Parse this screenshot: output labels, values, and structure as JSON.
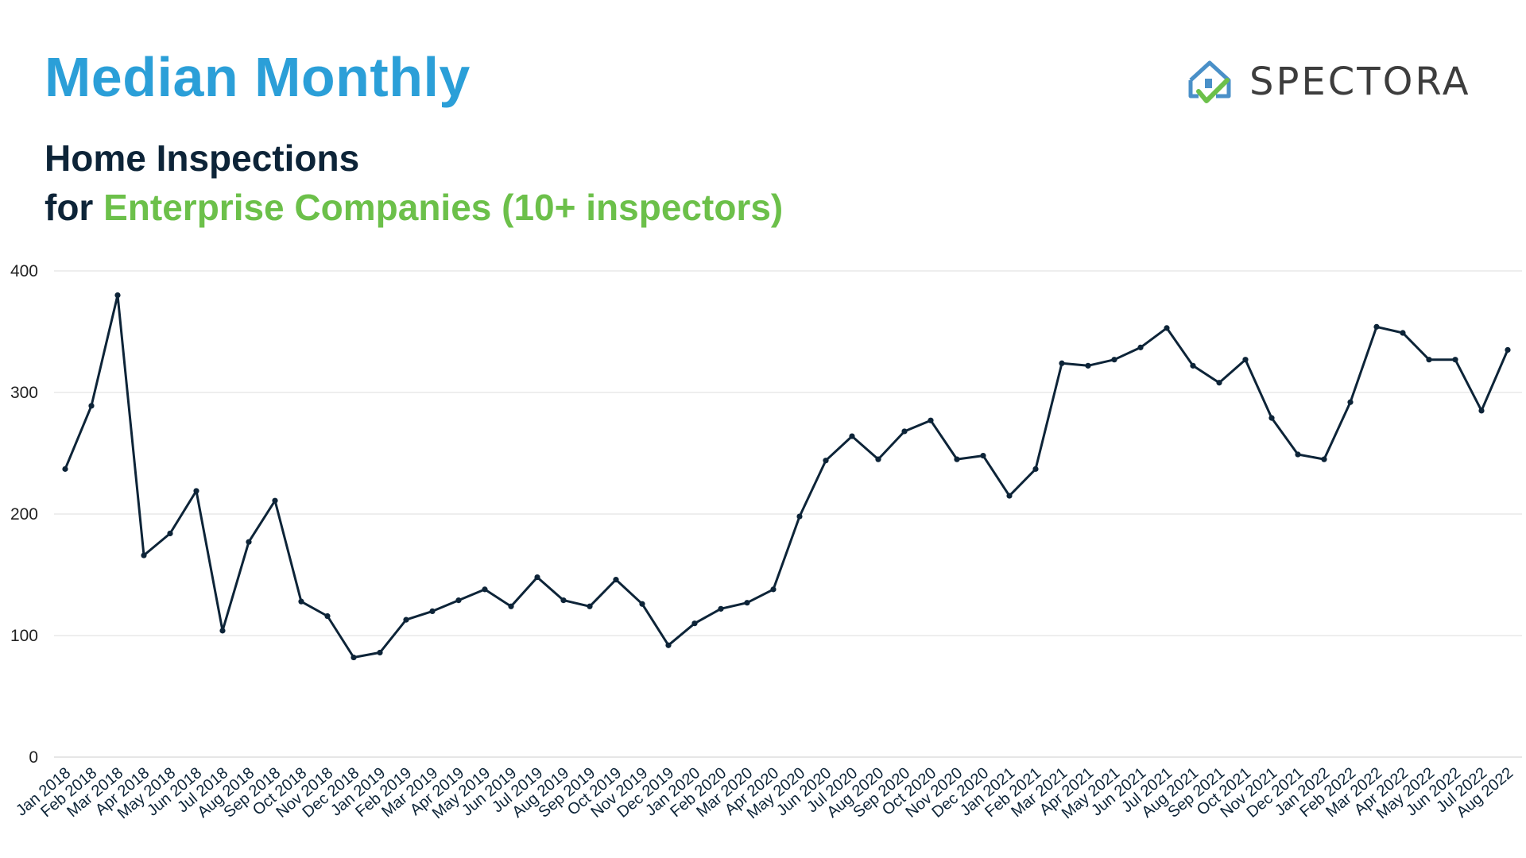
{
  "header": {
    "title": "Median Monthly",
    "subtitle_line1": "Home Inspections",
    "subtitle_for": "for",
    "subtitle_highlight": "Enterprise Companies (10+ inspectors)"
  },
  "brand": {
    "name": "SPECTORA",
    "icon": "house-check-icon",
    "colors": {
      "house": "#4a90c8",
      "check": "#6cc04a"
    }
  },
  "colors": {
    "title": "#2b9fd8",
    "subtitle": "#0d2438",
    "accent": "#6cc04a",
    "line": "#0d2438",
    "grid": "#dddddd"
  },
  "chart_data": {
    "type": "line",
    "title": "",
    "xlabel": "",
    "ylabel": "",
    "ylim": [
      0,
      400
    ],
    "yticks": [
      0,
      100,
      200,
      300,
      400
    ],
    "grid": true,
    "categories": [
      "Jan 2018",
      "Feb 2018",
      "Mar 2018",
      "Apr 2018",
      "May 2018",
      "Jun 2018",
      "Jul 2018",
      "Aug 2018",
      "Sep 2018",
      "Oct 2018",
      "Nov 2018",
      "Dec 2018",
      "Jan 2019",
      "Feb 2019",
      "Mar 2019",
      "Apr 2019",
      "May 2019",
      "Jun 2019",
      "Jul 2019",
      "Aug 2019",
      "Sep 2019",
      "Oct 2019",
      "Nov 2019",
      "Dec 2019",
      "Jan 2020",
      "Feb 2020",
      "Mar 2020",
      "Apr 2020",
      "May 2020",
      "Jun 2020",
      "Jul 2020",
      "Aug 2020",
      "Sep 2020",
      "Oct 2020",
      "Nov 2020",
      "Dec 2020",
      "Jan 2021",
      "Feb 2021",
      "Mar 2021",
      "Apr 2021",
      "May 2021",
      "Jun 2021",
      "Jul 2021",
      "Aug 2021",
      "Sep 2021",
      "Oct 2021",
      "Nov 2021",
      "Dec 2021",
      "Jan 2022",
      "Feb 2022",
      "Mar 2022",
      "Apr 2022",
      "May 2022",
      "Jun 2022",
      "Jul 2022",
      "Aug 2022"
    ],
    "values": [
      237,
      289,
      380,
      166,
      184,
      219,
      104,
      177,
      211,
      128,
      116,
      82,
      86,
      113,
      120,
      129,
      138,
      124,
      148,
      129,
      124,
      146,
      126,
      92,
      110,
      122,
      127,
      138,
      198,
      244,
      264,
      245,
      268,
      277,
      245,
      248,
      215,
      237,
      324,
      322,
      327,
      337,
      353,
      322,
      308,
      327,
      279,
      249,
      245,
      292,
      354,
      349,
      327,
      327,
      285,
      335
    ]
  }
}
